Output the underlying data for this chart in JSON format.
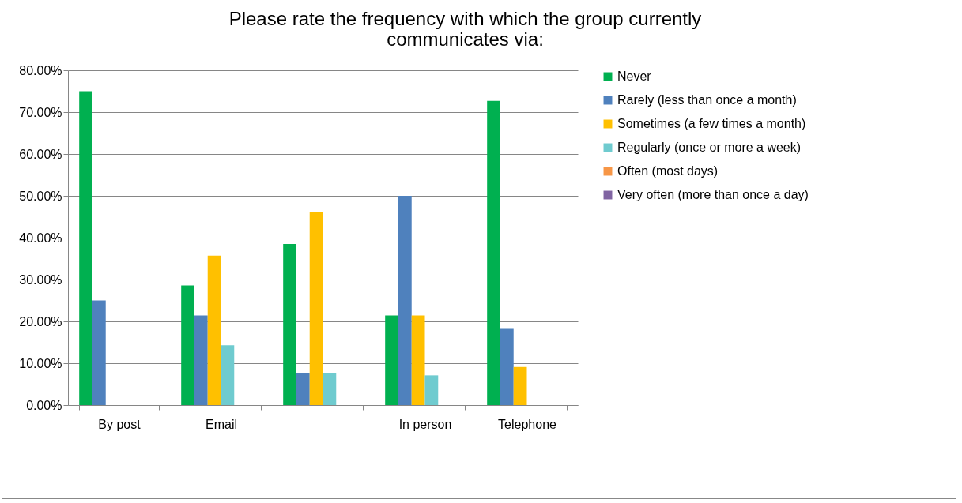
{
  "chart_data": {
    "type": "bar",
    "title": "Please rate the frequency with which the group currently communicates via:",
    "categories": [
      "By post",
      "Email",
      null,
      "In person",
      "Telephone"
    ],
    "series": [
      {
        "name": "Never",
        "color": "#00b050",
        "values": [
          75.0,
          28.6,
          38.5,
          21.4,
          72.7
        ]
      },
      {
        "name": "Rarely (less than once a month)",
        "color": "#4f81bd",
        "values": [
          25.0,
          21.4,
          7.7,
          50.0,
          18.2
        ]
      },
      {
        "name": "Sometimes (a few times a month)",
        "color": "#ffc000",
        "values": [
          0,
          35.7,
          46.2,
          21.4,
          9.1
        ]
      },
      {
        "name": "Regularly (once or more a week)",
        "color": "#6fcbcf",
        "values": [
          0,
          14.3,
          7.7,
          7.1,
          0
        ]
      },
      {
        "name": "Often (most days)",
        "color": "#f79646",
        "values": [
          0,
          0,
          0,
          0,
          0
        ]
      },
      {
        "name": "Very often (more than once a day)",
        "color": "#8064a2",
        "values": [
          0,
          0,
          0,
          0,
          0
        ]
      }
    ],
    "ylim": [
      0,
      80
    ],
    "yticks": [
      {
        "value": 0,
        "label": "0.00%"
      },
      {
        "value": 10,
        "label": "10.00%"
      },
      {
        "value": 20,
        "label": "20.00%"
      },
      {
        "value": 30,
        "label": "30.00%"
      },
      {
        "value": 40,
        "label": "40.00%"
      },
      {
        "value": 50,
        "label": "50.00%"
      },
      {
        "value": 60,
        "label": "60.00%"
      },
      {
        "value": 70,
        "label": "70.00%"
      },
      {
        "value": 80,
        "label": "80.00%"
      }
    ],
    "grid": "y",
    "legend": "right"
  }
}
